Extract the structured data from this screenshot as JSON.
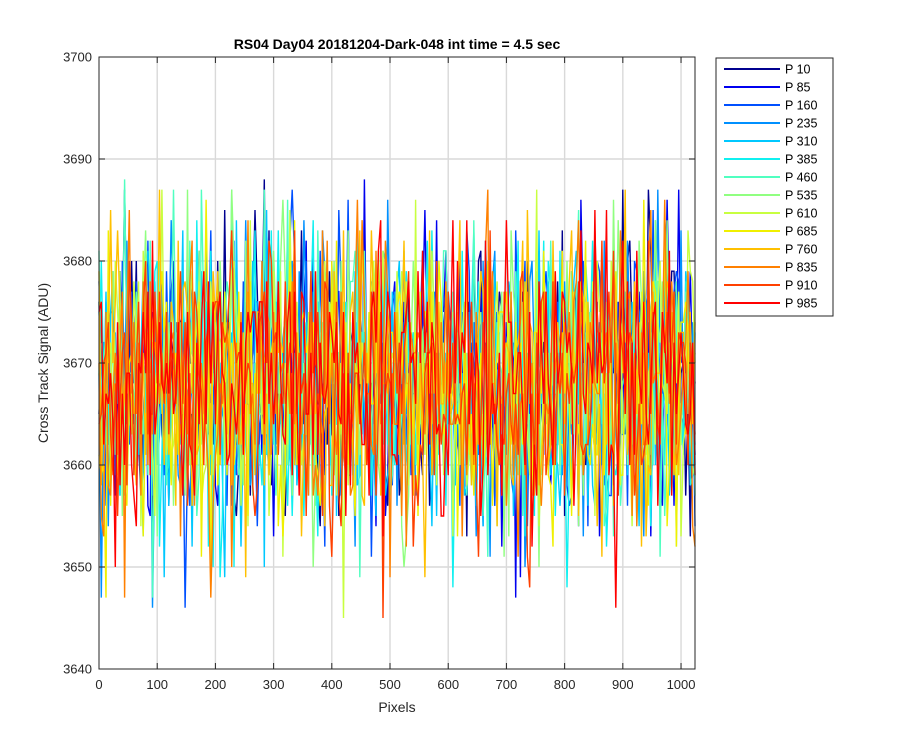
{
  "chart_data": {
    "type": "line",
    "title": "RS04 Day04 20181204-Dark-048 int time = 4.5 sec",
    "xlabel": "Pixels",
    "ylabel": "Cross Track Signal (ADU)",
    "xlim": [
      0,
      1024
    ],
    "ylim": [
      3640,
      3700
    ],
    "xticks": [
      0,
      100,
      200,
      300,
      400,
      500,
      600,
      700,
      800,
      900,
      1000
    ],
    "yticks": [
      3640,
      3650,
      3660,
      3670,
      3680,
      3690,
      3700
    ],
    "grid": true,
    "legend_position": "outside-top-right",
    "noise_mean": 3668,
    "noise_range": [
      3645,
      3697
    ],
    "series": [
      {
        "name": "P 10",
        "color": "#00008f"
      },
      {
        "name": "P 85",
        "color": "#0000ef"
      },
      {
        "name": "P 160",
        "color": "#0050ff"
      },
      {
        "name": "P 235",
        "color": "#0090ff"
      },
      {
        "name": "P 310",
        "color": "#00c8ff"
      },
      {
        "name": "P 385",
        "color": "#10f0f0"
      },
      {
        "name": "P 460",
        "color": "#50ffc0"
      },
      {
        "name": "P 535",
        "color": "#90ff80"
      },
      {
        "name": "P 610",
        "color": "#c8ff40"
      },
      {
        "name": "P 685",
        "color": "#f0f000"
      },
      {
        "name": "P 760",
        "color": "#ffc000"
      },
      {
        "name": "P 835",
        "color": "#ff8000"
      },
      {
        "name": "P 910",
        "color": "#ff4000"
      },
      {
        "name": "P 985",
        "color": "#ff0000"
      }
    ]
  }
}
